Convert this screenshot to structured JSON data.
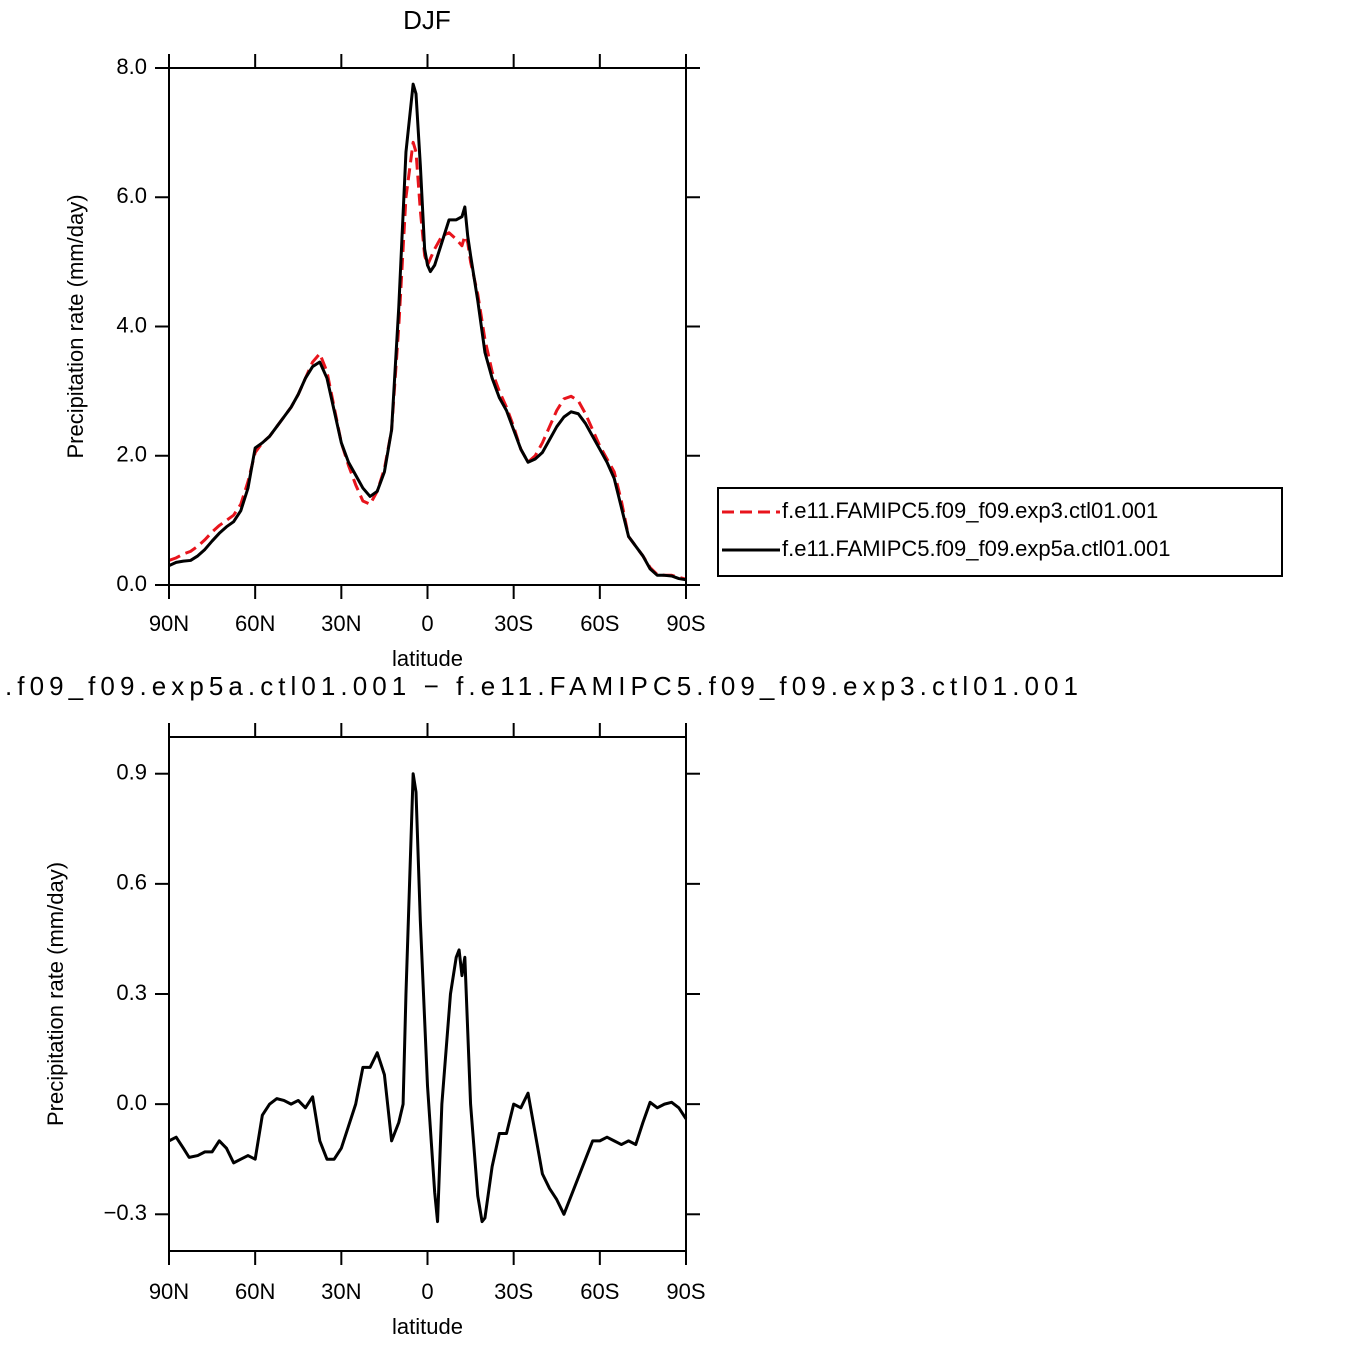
{
  "chart_data": [
    {
      "type": "line",
      "title": "DJF",
      "x_label": "latitude",
      "y_label": "Precipitation rate (mm/day)",
      "x": [
        90,
        87.5,
        85,
        82.5,
        80,
        77.5,
        75,
        72.5,
        70,
        67.5,
        65,
        62.5,
        60,
        57.5,
        55,
        52.5,
        50,
        47.5,
        45,
        42.5,
        40,
        37.5,
        35,
        32.5,
        30,
        27.5,
        25,
        22.5,
        20,
        17.5,
        15,
        12.5,
        10,
        7.5,
        5,
        4,
        2.5,
        1,
        0,
        -1,
        -2.5,
        -5,
        -7.5,
        -10,
        -12,
        -13,
        -14,
        -15,
        -17.5,
        -20,
        -22.5,
        -25,
        -27.5,
        -30,
        -32.5,
        -35,
        -37.5,
        -40,
        -42.5,
        -45,
        -47.5,
        -50,
        -52.5,
        -55,
        -57.5,
        -60,
        -62.5,
        -65,
        -67.5,
        -70,
        -72.5,
        -75,
        -77.5,
        -80,
        -82.5,
        -85,
        -87.5,
        -90
      ],
      "series": [
        {
          "name": "f.e11.FAMIPC5.f09_f09.exp3.ctl01.001",
          "color": "#e8141c",
          "dash": true,
          "values": [
            0.38,
            0.42,
            0.48,
            0.52,
            0.6,
            0.7,
            0.82,
            0.92,
            1.0,
            1.08,
            1.25,
            1.6,
            2.05,
            2.2,
            2.3,
            2.45,
            2.6,
            2.75,
            2.95,
            3.2,
            3.45,
            3.58,
            3.3,
            2.75,
            2.2,
            1.85,
            1.55,
            1.3,
            1.25,
            1.45,
            1.8,
            2.4,
            4.0,
            6.0,
            6.85,
            6.7,
            5.8,
            5.1,
            4.95,
            5.05,
            5.2,
            5.4,
            5.45,
            5.35,
            5.25,
            5.4,
            5.3,
            5.0,
            4.5,
            3.8,
            3.3,
            3.0,
            2.75,
            2.45,
            2.1,
            1.9,
            2.0,
            2.2,
            2.45,
            2.7,
            2.88,
            2.92,
            2.85,
            2.65,
            2.4,
            2.15,
            1.95,
            1.75,
            1.3,
            0.75,
            0.6,
            0.45,
            0.27,
            0.16,
            0.15,
            0.15,
            0.12,
            0.09
          ]
        },
        {
          "name": "f.e11.FAMIPC5.f09_f09.exp5a.ctl01.001",
          "color": "#000000",
          "dash": false,
          "values": [
            0.3,
            0.35,
            0.37,
            0.38,
            0.45,
            0.55,
            0.68,
            0.8,
            0.9,
            0.98,
            1.15,
            1.5,
            2.12,
            2.2,
            2.3,
            2.45,
            2.6,
            2.75,
            2.95,
            3.2,
            3.38,
            3.45,
            3.2,
            2.7,
            2.2,
            1.9,
            1.7,
            1.5,
            1.37,
            1.45,
            1.75,
            2.4,
            4.3,
            6.7,
            7.75,
            7.6,
            6.5,
            5.2,
            4.95,
            4.85,
            4.95,
            5.3,
            5.65,
            5.65,
            5.7,
            5.85,
            5.4,
            5.1,
            4.4,
            3.6,
            3.2,
            2.9,
            2.7,
            2.4,
            2.1,
            1.9,
            1.95,
            2.05,
            2.25,
            2.45,
            2.6,
            2.68,
            2.65,
            2.5,
            2.3,
            2.1,
            1.9,
            1.65,
            1.2,
            0.75,
            0.6,
            0.45,
            0.25,
            0.15,
            0.15,
            0.14,
            0.1,
            0.08
          ]
        }
      ],
      "xlim": [
        90,
        -90
      ],
      "xticks": [
        {
          "value": 90,
          "label": "90N"
        },
        {
          "value": 60,
          "label": "60N"
        },
        {
          "value": 30,
          "label": "30N"
        },
        0,
        {
          "value": -30,
          "label": "30S"
        },
        {
          "value": -60,
          "label": "60S"
        },
        {
          "value": -90,
          "label": "90S"
        }
      ],
      "ylim": [
        0,
        8
      ],
      "yticks": [
        {
          "value": 0,
          "label": "0.0"
        },
        {
          "value": 2,
          "label": "2.0"
        },
        {
          "value": 4,
          "label": "4.0"
        },
        {
          "value": 6,
          "label": "6.0"
        },
        {
          "value": 8,
          "label": "8.0"
        }
      ],
      "legend": "right"
    },
    {
      "type": "line",
      "title": ".f09_f09.exp5a.ctl01.001  −  f.e11.FAMIPC5.f09_f09.exp3.ctl01.001",
      "x_label": "latitude",
      "y_label": "Precipitation rate (mm/day)",
      "x": [
        90,
        87.5,
        85,
        83,
        80,
        77.5,
        75,
        72.5,
        70,
        67.5,
        65,
        62.5,
        60,
        57.5,
        55,
        52.5,
        50,
        47.5,
        45,
        42.5,
        40,
        37.5,
        35,
        32.5,
        30,
        27.5,
        25,
        22.5,
        20,
        17.5,
        15,
        12.5,
        10,
        8.5,
        7.5,
        5,
        4,
        2.5,
        0,
        -2.5,
        -3.5,
        -5,
        -6,
        -8,
        -10,
        -11,
        -12,
        -13,
        -15,
        -17.5,
        -19,
        -20,
        -22.5,
        -25,
        -27.5,
        -30,
        -32.5,
        -35,
        -37.5,
        -40,
        -42.5,
        -45,
        -47.5,
        -50,
        -52.5,
        -55,
        -57.5,
        -60,
        -62.5,
        -65,
        -67.5,
        -70,
        -72.5,
        -75,
        -77.5,
        -80,
        -82.5,
        -85,
        -87.5,
        -90
      ],
      "series": [
        {
          "color": "#000000",
          "dash": false,
          "values": [
            -0.1,
            -0.09,
            -0.12,
            -0.145,
            -0.14,
            -0.13,
            -0.13,
            -0.1,
            -0.12,
            -0.16,
            -0.15,
            -0.14,
            -0.15,
            -0.03,
            0.0,
            0.015,
            0.01,
            0.0,
            0.01,
            -0.01,
            0.02,
            -0.1,
            -0.15,
            -0.15,
            -0.12,
            -0.06,
            0.0,
            0.1,
            0.1,
            0.14,
            0.08,
            -0.1,
            -0.05,
            0.0,
            0.3,
            0.9,
            0.85,
            0.5,
            0.05,
            -0.24,
            -0.32,
            0.0,
            0.1,
            0.3,
            0.4,
            0.42,
            0.35,
            0.4,
            0.0,
            -0.25,
            -0.32,
            -0.31,
            -0.17,
            -0.08,
            -0.08,
            0.0,
            -0.01,
            0.03,
            -0.08,
            -0.19,
            -0.23,
            -0.26,
            -0.3,
            -0.25,
            -0.2,
            -0.15,
            -0.1,
            -0.1,
            -0.09,
            -0.1,
            -0.11,
            -0.1,
            -0.11,
            -0.05,
            0.005,
            -0.01,
            0.0,
            0.005,
            -0.01,
            -0.04
          ]
        }
      ],
      "xlim": [
        90,
        -90
      ],
      "xticks": [
        {
          "value": 90,
          "label": "90N"
        },
        {
          "value": 60,
          "label": "60N"
        },
        {
          "value": 30,
          "label": "30N"
        },
        0,
        {
          "value": -30,
          "label": "30S"
        },
        {
          "value": -60,
          "label": "60S"
        },
        {
          "value": -90,
          "label": "90S"
        }
      ],
      "ylim": [
        -0.4,
        1.0
      ],
      "yticks": [
        {
          "value": -0.3,
          "label": "−0.3"
        },
        {
          "value": 0,
          "label": "0.0"
        },
        0.3,
        0.6,
        0.9
      ]
    }
  ]
}
